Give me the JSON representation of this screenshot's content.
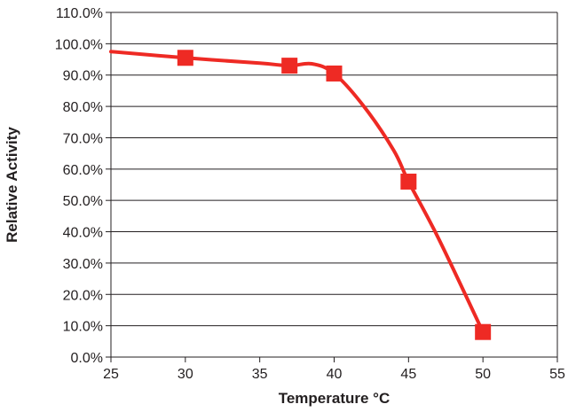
{
  "chart_data": {
    "type": "line",
    "title": "",
    "xlabel": "Temperature °C",
    "ylabel": "Relative  Activity",
    "xlim": [
      25,
      55
    ],
    "ylim": [
      0,
      110
    ],
    "x_ticks": [
      25,
      30,
      35,
      40,
      45,
      50,
      55
    ],
    "x_tick_labels": [
      "25",
      "30",
      "35",
      "40",
      "45",
      "50",
      "55"
    ],
    "y_ticks": [
      0,
      10,
      20,
      30,
      40,
      50,
      60,
      70,
      80,
      90,
      100,
      110
    ],
    "y_tick_labels": [
      "0.0%",
      "10.0%",
      "20.0%",
      "30.0%",
      "40.0%",
      "50.0%",
      "60.0%",
      "70.0%",
      "80.0%",
      "90.0%",
      "100.0%",
      "110.0%"
    ],
    "grid": "horizontal",
    "legend": "none",
    "series": [
      {
        "color": "#ee2a24",
        "marker": "square",
        "points": [
          {
            "x": 30,
            "y": 95.5
          },
          {
            "x": 37,
            "y": 93.0
          },
          {
            "x": 40,
            "y": 90.5
          },
          {
            "x": 45,
            "y": 56.0
          },
          {
            "x": 50,
            "y": 8.0
          }
        ],
        "curve": [
          {
            "x": 25,
            "y": 97.5
          },
          {
            "x": 30,
            "y": 95.5
          },
          {
            "x": 35,
            "y": 93.8
          },
          {
            "x": 37,
            "y": 93.0
          },
          {
            "x": 38.5,
            "y": 93.6
          },
          {
            "x": 40,
            "y": 90.5
          },
          {
            "x": 42,
            "y": 80.0
          },
          {
            "x": 44,
            "y": 66.0
          },
          {
            "x": 45,
            "y": 56.0
          },
          {
            "x": 47,
            "y": 38.0
          },
          {
            "x": 50,
            "y": 8.0
          }
        ]
      }
    ]
  }
}
